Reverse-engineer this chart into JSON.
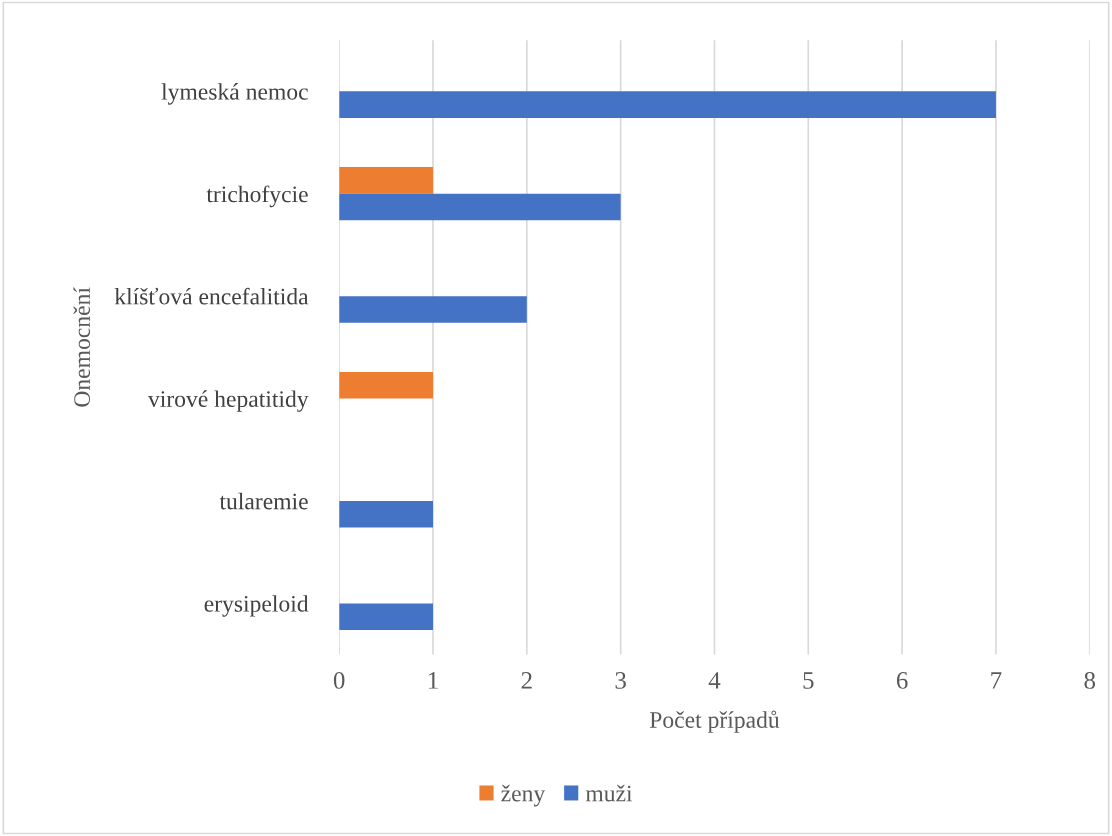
{
  "chart_data": {
    "type": "bar",
    "orientation": "horizontal",
    "xlabel": "Počet případů",
    "ylabel": "Onemocnění",
    "categories": [
      "lymeská nemoc",
      "trichofycie",
      "klíšťová encefalitida",
      "virové hepatitidy",
      "tularemie",
      "erysipeloid"
    ],
    "series": [
      {
        "name": "ženy",
        "color": "#ed7d31",
        "values": [
          null,
          1,
          null,
          1,
          null,
          null
        ]
      },
      {
        "name": "muži",
        "color": "#4472c4",
        "values": [
          7,
          3,
          2,
          null,
          1,
          1
        ]
      }
    ],
    "xlim": [
      0,
      8
    ],
    "xticks": [
      0,
      1,
      2,
      3,
      4,
      5,
      6,
      7,
      8
    ],
    "grid": "x",
    "legend": "bottom"
  }
}
